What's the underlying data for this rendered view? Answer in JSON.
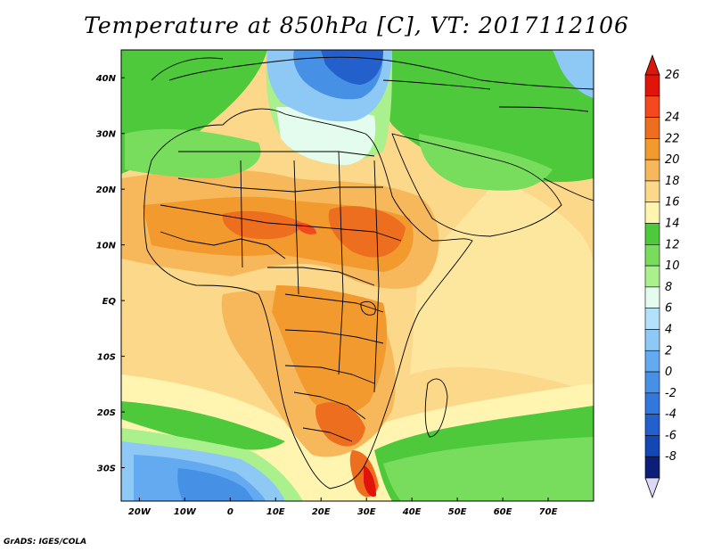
{
  "title": "Temperature at 850hPa [C], VT: 2017112106",
  "credit": "GrADS: IGES/COLA",
  "map": {
    "lon_range": [
      -24,
      80
    ],
    "lat_range": [
      -36,
      45
    ],
    "lon_ticks": [
      "20W",
      "10W",
      "0",
      "10E",
      "20E",
      "30E",
      "40E",
      "50E",
      "60E",
      "70E"
    ],
    "lat_ticks": [
      "40N",
      "30N",
      "20N",
      "10N",
      "EQ",
      "10S",
      "20S",
      "30S"
    ]
  },
  "colorbar": {
    "labels": [
      "26",
      "24",
      "22",
      "20",
      "18",
      "16",
      "14",
      "12",
      "10",
      "8",
      "6",
      "4",
      "2",
      "0",
      "-2",
      "-4",
      "-6",
      "-8"
    ],
    "colors_top_to_bottom": [
      "#e0140a",
      "#f4481e",
      "#ee6e20",
      "#f39a2e",
      "#f6b85a",
      "#fbd88a",
      "#fff4b0",
      "#4ec93c",
      "#78dd5c",
      "#aaf08c",
      "#e4fcee",
      "#b4e0fa",
      "#8ec8f4",
      "#64aaf0",
      "#4690e6",
      "#3278dc",
      "#2460cc",
      "#1446b4",
      "#0c1e78"
    ],
    "top_arrow_color": "#d81808",
    "bottom_arrow_color": "#dcd8f8"
  }
}
